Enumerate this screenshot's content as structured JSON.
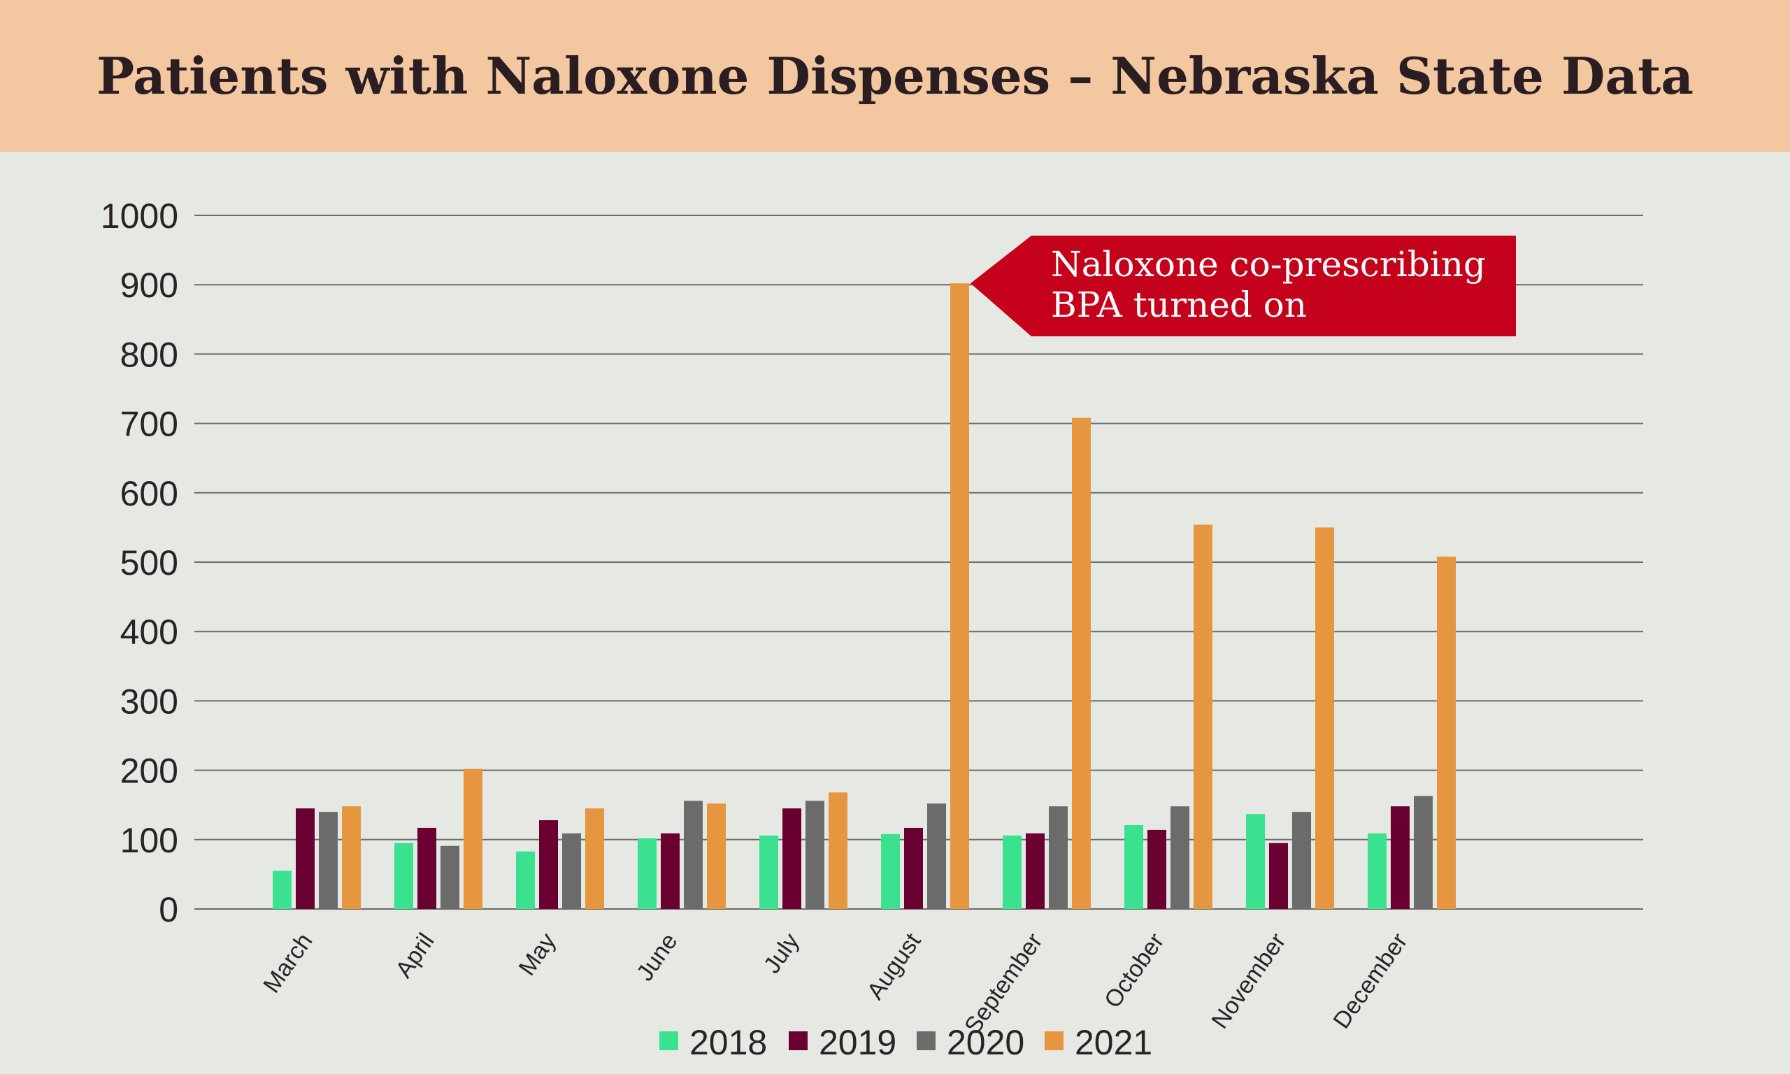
{
  "header": {
    "title": "Patients with Naloxone Dispenses – Nebraska State Data"
  },
  "colors": {
    "header_bg": "#f3c8a0",
    "plot_bg": "#e6e9e3",
    "grid": "#6b6b6b",
    "callout": "#c4001a"
  },
  "chart_data": {
    "type": "bar",
    "categories": [
      "March",
      "April",
      "May",
      "June",
      "July",
      "August",
      "September",
      "October",
      "November",
      "December"
    ],
    "series": [
      {
        "name": "2018",
        "color": "#3ae28f",
        "values": [
          55,
          95,
          83,
          102,
          106,
          108,
          106,
          121,
          137,
          109
        ]
      },
      {
        "name": "2019",
        "color": "#6a0032",
        "values": [
          145,
          117,
          128,
          109,
          145,
          117,
          109,
          114,
          95,
          148
        ]
      },
      {
        "name": "2020",
        "color": "#6b6b6b",
        "values": [
          140,
          91,
          109,
          156,
          156,
          152,
          148,
          148,
          140,
          163
        ]
      },
      {
        "name": "2021",
        "color": "#e6963e",
        "values": [
          148,
          202,
          145,
          152,
          168,
          902,
          708,
          554,
          550,
          508
        ]
      }
    ],
    "y_ticks": [
      "0",
      "100",
      "200",
      "300",
      "400",
      "500",
      "600",
      "700",
      "800",
      "900",
      "1000"
    ],
    "ylim": [
      0,
      1000
    ],
    "grid": true,
    "legend": "bottom-center",
    "annotation": {
      "lines": [
        "Naloxone co-prescribing",
        "BPA turned on"
      ],
      "points_to": "August 2021"
    }
  }
}
